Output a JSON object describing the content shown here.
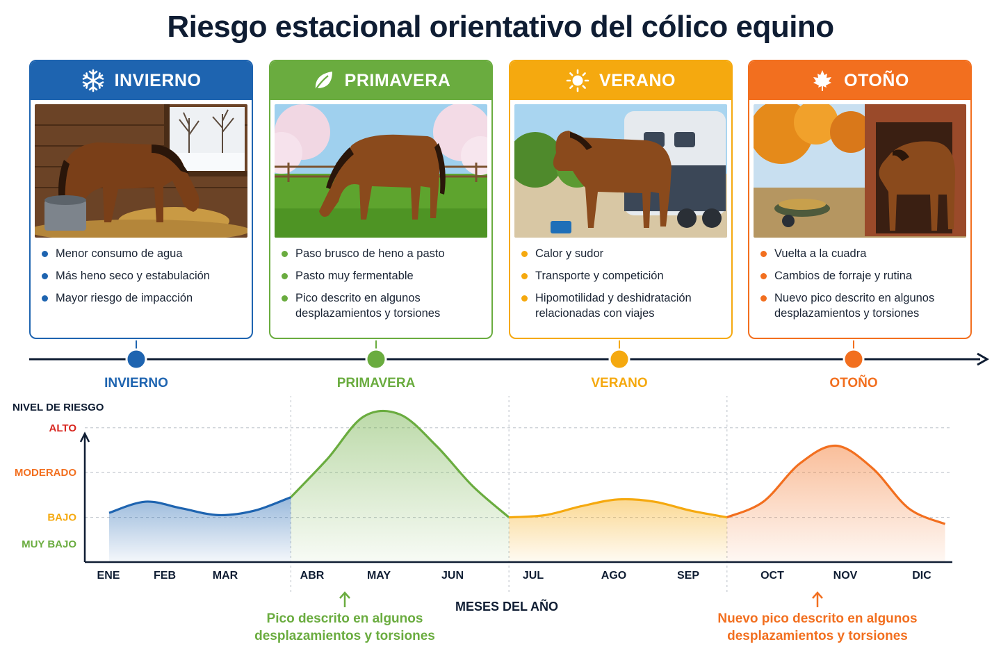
{
  "title": "Riesgo estacional orientativo del cólico equino",
  "colors": {
    "winter": "#1e64b0",
    "spring": "#6aac3f",
    "summer": "#f5a90f",
    "autumn": "#f26f1f",
    "dark": "#0f1d33",
    "red": "#d8261f"
  },
  "seasons": [
    {
      "name": "INVIERNO",
      "icon": "snowflake-icon",
      "bullets": [
        "Menor consumo de agua",
        "Más heno seco y estabulación",
        "Mayor riesgo de impacción"
      ]
    },
    {
      "name": "PRIMAVERA",
      "icon": "leaf-icon",
      "bullets": [
        "Paso brusco de heno a pasto",
        "Pasto muy fermentable",
        "Pico descrito en algunos desplazamientos y torsiones"
      ]
    },
    {
      "name": "VERANO",
      "icon": "sun-icon",
      "bullets": [
        "Calor y sudor",
        "Transporte y competición",
        "Hipomotilidad y deshidratación relacionadas con viajes"
      ]
    },
    {
      "name": "OTOÑO",
      "icon": "maple-leaf-icon",
      "bullets": [
        "Vuelta a la cuadra",
        "Cambios de forraje y rutina",
        "Nuevo pico descrito en algunos desplazamientos y torsiones"
      ]
    }
  ],
  "chart_data": {
    "type": "area",
    "title": "",
    "ylabel": "NIVEL DE RIESGO",
    "xlabel": "MESES DEL AÑO",
    "y_levels": [
      "MUY BAJO",
      "BAJO",
      "MODERADO",
      "ALTO"
    ],
    "ylim": [
      0,
      3.4
    ],
    "x": [
      "ENE",
      "FEB",
      "MAR",
      "ABR",
      "MAY",
      "JUN",
      "JUL",
      "AGO",
      "SEP",
      "OCT",
      "NOV",
      "DIC"
    ],
    "series": [
      {
        "season": "INVIERNO",
        "x": [
          0.0,
          0.5,
          1.0,
          1.5,
          2.0,
          2.5
        ],
        "values": [
          1.1,
          1.35,
          1.2,
          1.05,
          1.15,
          1.45
        ]
      },
      {
        "season": "PRIMAVERA",
        "x": [
          2.5,
          3.0,
          3.5,
          4.0,
          4.5,
          5.0,
          5.5
        ],
        "values": [
          1.45,
          2.3,
          3.25,
          3.3,
          2.6,
          1.7,
          1.0
        ]
      },
      {
        "season": "VERANO",
        "x": [
          5.5,
          6.0,
          6.5,
          7.0,
          7.5,
          8.0,
          8.5
        ],
        "values": [
          1.0,
          1.05,
          1.25,
          1.4,
          1.35,
          1.15,
          1.0
        ]
      },
      {
        "season": "OTOÑO",
        "x": [
          8.5,
          9.0,
          9.5,
          10.0,
          10.5,
          11.0,
          11.5
        ],
        "values": [
          1.0,
          1.35,
          2.2,
          2.6,
          2.1,
          1.2,
          0.85
        ]
      }
    ],
    "grid": "dashed horizontal lines at risk levels; dotted vertical season dividers",
    "annotations": [
      {
        "text": "Pico descrito en algunos desplazamientos y torsiones",
        "season": "PRIMAVERA",
        "x": 4.0
      },
      {
        "text": "Nuevo pico descrito en algunos desplazamientos y torsiones",
        "season": "OTOÑO",
        "x": 10.0
      }
    ]
  }
}
